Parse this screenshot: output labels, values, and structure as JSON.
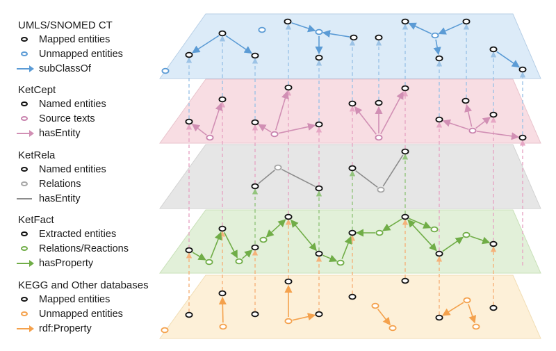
{
  "layers": [
    {
      "key": "umls",
      "title": "UMLS/SNOMED CT",
      "fill": "#dcebf8",
      "stroke": "#b7cfe6",
      "edge_color": "#5b9bd5",
      "sub_color": "#5b9bd5",
      "legend": [
        {
          "kind": "ring",
          "color": "#111111",
          "label": "Mapped entities"
        },
        {
          "kind": "ring",
          "color": "#5b9bd5",
          "label": "Unmapped entities"
        },
        {
          "kind": "arrow",
          "color": "#5b9bd5",
          "label": "subClassOf"
        }
      ]
    },
    {
      "key": "ketcept",
      "title": "KetCept",
      "fill": "#f8dde3",
      "stroke": "#e8c3cc",
      "edge_color": "#d18fb4",
      "sub_color": "#c882ad",
      "legend": [
        {
          "kind": "ring",
          "color": "#111111",
          "label": "Named entities"
        },
        {
          "kind": "ring",
          "color": "#c882ad",
          "label": "Source texts"
        },
        {
          "kind": "arrow",
          "color": "#d18fb4",
          "label": "hasEntity"
        }
      ]
    },
    {
      "key": "ketrela",
      "title": "KetRela",
      "fill": "#e6e6e6",
      "stroke": "#d2d2d2",
      "edge_color": "#8c8c8c",
      "sub_color": "#a6a6a6",
      "legend": [
        {
          "kind": "ring",
          "color": "#111111",
          "label": "Named entities"
        },
        {
          "kind": "ring",
          "color": "#a6a6a6",
          "label": "Relations"
        },
        {
          "kind": "line",
          "color": "#8c8c8c",
          "label": "hasEntity"
        }
      ]
    },
    {
      "key": "ketfact",
      "title": "KetFact",
      "fill": "#e2f0d9",
      "stroke": "#c8e0b8",
      "edge_color": "#70ad47",
      "sub_color": "#70ad47",
      "legend": [
        {
          "kind": "ring",
          "color": "#111111",
          "label": "Extracted entities"
        },
        {
          "kind": "ring",
          "color": "#70ad47",
          "label": "Relations/Reactions"
        },
        {
          "kind": "arrow",
          "color": "#70ad47",
          "label": "hasProperty"
        }
      ]
    },
    {
      "key": "kegg",
      "title": "KEGG and Other databases",
      "fill": "#fdf0d8",
      "stroke": "#f1ddb4",
      "edge_color": "#f4a14c",
      "sub_color": "#f4a14c",
      "legend": [
        {
          "kind": "ring",
          "color": "#111111",
          "label": "Mapped entities"
        },
        {
          "kind": "ring",
          "color": "#f4a14c",
          "label": "Unmapped entities"
        },
        {
          "kind": "arrow",
          "color": "#f4a14c",
          "label": "rdf:Property"
        }
      ]
    }
  ]
}
